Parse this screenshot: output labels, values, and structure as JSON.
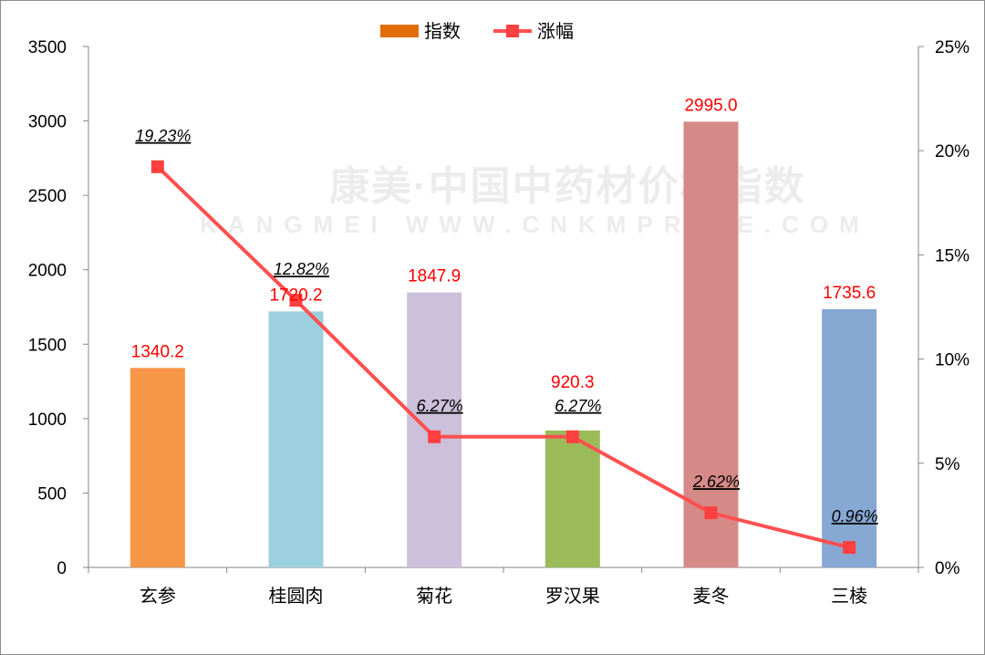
{
  "chart_data": {
    "type": "bar+line",
    "categories": [
      "玄参",
      "桂圆肉",
      "菊花",
      "罗汉果",
      "麦冬",
      "三棱"
    ],
    "series": [
      {
        "name": "指数",
        "type": "bar",
        "axis": "left",
        "values": [
          1340.2,
          1720.2,
          1847.9,
          920.3,
          2995.0,
          1735.6
        ],
        "labels": [
          "1340.2",
          "1720.2",
          "1847.9",
          "920.3",
          "2995.0",
          "1735.6"
        ],
        "colors": [
          "#f79646",
          "#9dd0de",
          "#ccc0da",
          "#9bbb59",
          "#d68a88",
          "#86a8d3"
        ],
        "legend_color": "#e36c0a"
      },
      {
        "name": "涨幅",
        "type": "line",
        "axis": "right",
        "values": [
          19.23,
          12.82,
          6.27,
          6.27,
          2.62,
          0.96
        ],
        "labels": [
          "19.23%",
          "12.82%",
          "6.27%",
          "6.27%",
          "2.62%",
          "0.96%"
        ],
        "color": "#ff5050"
      }
    ],
    "left_axis": {
      "ylim": [
        0,
        3500
      ],
      "ticks": [
        "0",
        "500",
        "1000",
        "1500",
        "2000",
        "2500",
        "3000",
        "3500"
      ]
    },
    "right_axis": {
      "ylim": [
        0,
        25
      ],
      "ticks": [
        "0%",
        "5%",
        "10%",
        "15%",
        "20%",
        "25%"
      ]
    },
    "legend_position": "top-center",
    "grid": false,
    "watermark": [
      "康美·中国中药材价格指数",
      "KANGMEI WWW.CNKMPRICE.COM"
    ]
  }
}
